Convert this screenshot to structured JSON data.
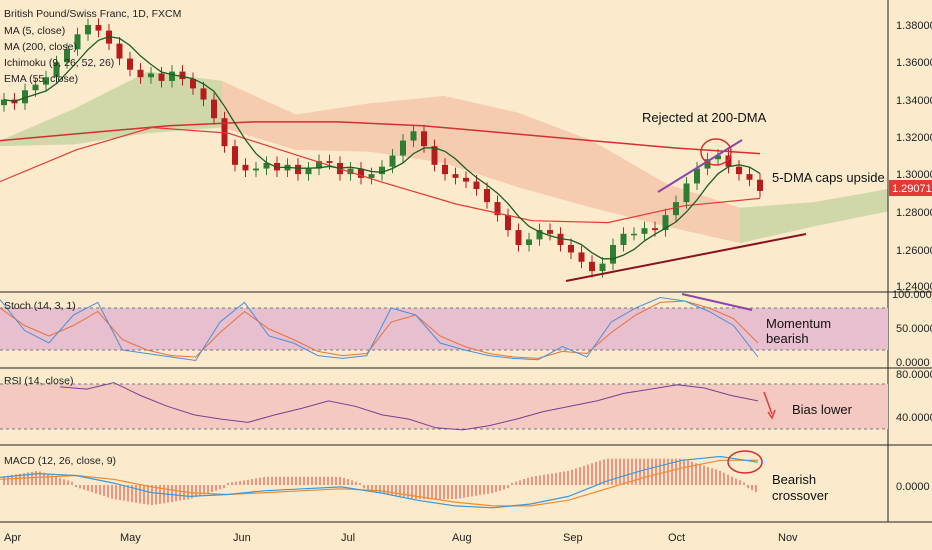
{
  "colors": {
    "background": "#fbebcc",
    "up_candle": "#2e7d32",
    "down_candle": "#b71c1c",
    "ma5": "#1b5e20",
    "ma200": "#d32f2f",
    "ema55": "#e53935",
    "cloud_bull": "#c8d3a2",
    "cloud_bear": "#f4c7aa",
    "stoch_zone": "#e8bfcf",
    "rsi_zone": "#f3c9c2",
    "price_tag": "#e53935",
    "trend_up": "#8b1020",
    "trend_top": "#8e44ad",
    "stoch_k": "#4a8fd8",
    "stoch_d": "#e8703a",
    "rsi_line": "#7b3f8f",
    "macd_line": "#3a9ad9",
    "signal_line": "#f08a30",
    "histogram": "#e53935"
  },
  "chart_data": {
    "type": "line",
    "title": "British Pound/Swiss Franc, 1D, FXCM",
    "indicators": [
      "MA (5, close)",
      "MA (200, close)",
      "Ichimoku (9, 26, 52, 26)",
      "EMA (55, close)"
    ],
    "x_ticks": [
      "Apr",
      "May",
      "Jun",
      "Jul",
      "Aug",
      "Sep",
      "Oct",
      "Nov"
    ],
    "price_axis": {
      "ylim": [
        1.24,
        1.392
      ],
      "ticks": [
        "1.38000",
        "1.36000",
        "1.34000",
        "1.32000",
        "1.30000",
        "1.28000",
        "1.26000",
        "1.24000"
      ]
    },
    "last_price": "1.29071",
    "price_series": [
      1.34,
      1.338,
      1.345,
      1.348,
      1.352,
      1.36,
      1.367,
      1.375,
      1.38,
      1.377,
      1.37,
      1.362,
      1.356,
      1.352,
      1.354,
      1.35,
      1.355,
      1.351,
      1.346,
      1.34,
      1.33,
      1.315,
      1.305,
      1.302,
      1.303,
      1.306,
      1.302,
      1.305,
      1.3,
      1.303,
      1.307,
      1.306,
      1.3,
      1.303,
      1.298,
      1.3,
      1.304,
      1.31,
      1.318,
      1.323,
      1.315,
      1.305,
      1.3,
      1.298,
      1.296,
      1.292,
      1.285,
      1.278,
      1.27,
      1.262,
      1.265,
      1.27,
      1.268,
      1.262,
      1.258,
      1.253,
      1.248,
      1.252,
      1.262,
      1.268,
      1.268,
      1.271,
      1.27,
      1.278,
      1.285,
      1.295,
      1.303,
      1.308,
      1.31,
      1.304,
      1.3,
      1.297,
      1.291
    ],
    "ma200_series": [
      1.318,
      1.322,
      1.326,
      1.328,
      1.328,
      1.326,
      1.322,
      1.318,
      1.314,
      1.311
    ],
    "ema55_series": [
      1.296,
      1.313,
      1.325,
      1.322,
      1.309,
      1.296,
      1.284,
      1.275,
      1.274,
      1.283,
      1.287
    ],
    "cloud_top": [
      1.318,
      1.335,
      1.355,
      1.35,
      1.332,
      1.338,
      1.342,
      1.333,
      1.318,
      1.295,
      1.282,
      1.285,
      1.292
    ],
    "cloud_bottom": [
      1.315,
      1.316,
      1.322,
      1.325,
      1.313,
      1.312,
      1.306,
      1.293,
      1.282,
      1.272,
      1.263,
      1.272,
      1.28
    ],
    "annotations": {
      "rejected": "Rejected at 200-DMA",
      "caps": "5-DMA caps upside"
    },
    "stoch": {
      "label": "Stoch (14, 3, 1)",
      "ticks": [
        "100.0000",
        "50.0000",
        "0.0000"
      ],
      "k": [
        92,
        48,
        30,
        70,
        88,
        20,
        15,
        10,
        5,
        60,
        88,
        40,
        30,
        12,
        8,
        12,
        80,
        70,
        30,
        20,
        12,
        8,
        6,
        25,
        10,
        60,
        80,
        95,
        90,
        75,
        55,
        10
      ],
      "d": [
        80,
        55,
        40,
        55,
        75,
        35,
        20,
        12,
        10,
        45,
        75,
        50,
        35,
        18,
        12,
        15,
        60,
        70,
        40,
        25,
        15,
        10,
        8,
        18,
        15,
        45,
        70,
        88,
        90,
        80,
        65,
        30
      ],
      "annotation": [
        "Momentum",
        "bearish"
      ]
    },
    "rsi": {
      "label": "RSI (14, close)",
      "ticks": [
        "80.0000",
        "40.0000"
      ],
      "values": [
        68,
        66,
        72,
        60,
        50,
        42,
        38,
        35,
        42,
        48,
        55,
        50,
        42,
        38,
        30,
        28,
        32,
        38,
        45,
        50,
        55,
        62,
        66,
        70,
        67,
        60,
        55
      ],
      "annotation": "Bias lower"
    },
    "macd": {
      "label": "MACD (12, 26, close, 9)",
      "ticks": [
        "0.0000"
      ],
      "macd": [
        0.004,
        0.006,
        0.005,
        0.001,
        -0.004,
        -0.006,
        -0.005,
        -0.003,
        -0.002,
        -0.001,
        -0.004,
        -0.008,
        -0.011,
        -0.012,
        -0.01,
        -0.006,
        0.002,
        0.008,
        0.013,
        0.015,
        0.012
      ],
      "signal": [
        0.003,
        0.004,
        0.005,
        0.003,
        -0.001,
        -0.004,
        -0.005,
        -0.004,
        -0.003,
        -0.002,
        -0.003,
        -0.006,
        -0.009,
        -0.011,
        -0.011,
        -0.008,
        -0.002,
        0.004,
        0.009,
        0.013,
        0.013
      ],
      "annotation": [
        "Bearish",
        "crossover"
      ]
    }
  }
}
